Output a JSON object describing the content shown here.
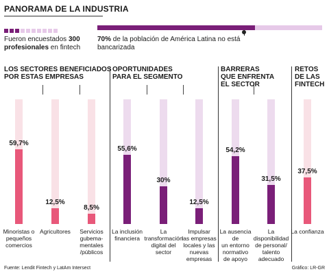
{
  "title": "PANORAMA DE LA INDUSTRIA",
  "colors": {
    "pink": "#e8587a",
    "pink_light": "#f9e1e6",
    "purple": "#7a1f78",
    "purple_light": "#eddbee",
    "purple_mid": "#e6c9e8"
  },
  "survey": {
    "text_before": "Fueron encuestados ",
    "count": "300",
    "bold_after": "profesionales",
    "text_after": " en fintech"
  },
  "latam": {
    "percent": "70%",
    "text": " de la población de América Latina no está bancarizada",
    "value": 70
  },
  "sections": [
    {
      "title_lines": [
        "LOS SECTORES BENEFICIADOS",
        "POR ESTAS EMPRESAS"
      ]
    },
    {
      "title_lines": [
        "OPORTUNIDADES",
        "PARA EL SEGMENTO"
      ]
    },
    {
      "title_lines": [
        "BARRERAS",
        "QUE ENFRENTA",
        "EL SECTOR"
      ]
    },
    {
      "title_lines": [
        "RETOS",
        "DE LAS",
        "FINTECH"
      ]
    }
  ],
  "chart_data": {
    "type": "bar",
    "ylim": [
      0,
      100
    ],
    "categories": [
      {
        "label_lines": [
          "Minoristas o",
          "pequeños",
          "comercios"
        ],
        "value": 59.7,
        "value_label": "59,7%",
        "color": "pink"
      },
      {
        "label_lines": [
          "Agricultores"
        ],
        "value": 12.5,
        "value_label": "12,5%",
        "color": "pink"
      },
      {
        "label_lines": [
          "Servicios",
          "gubema-",
          "mentales",
          "/públicos"
        ],
        "value": 8.5,
        "value_label": "8,5%",
        "color": "pink"
      },
      {
        "label_lines": [
          "La inclusión",
          "financiera"
        ],
        "value": 55.6,
        "value_label": "55,6%",
        "color": "purple"
      },
      {
        "label_lines": [
          "La",
          "transformación",
          "digital del",
          "sector"
        ],
        "value": 30,
        "value_label": "30%",
        "color": "purple"
      },
      {
        "label_lines": [
          "Impulsar",
          "las empresas",
          "locales y las",
          "nuevas",
          "empresas"
        ],
        "value": 12.5,
        "value_label": "12,5%",
        "color": "purple"
      },
      {
        "label_lines": [
          "La ausencia de",
          "un entorno",
          "normativo",
          "de apoyo"
        ],
        "value": 54.2,
        "value_label": "54,2%",
        "color": "purple"
      },
      {
        "label_lines": [
          "La",
          "disponibilidad",
          "de personal/",
          "talento",
          "adecuado"
        ],
        "value": 31.5,
        "value_label": "31,5%",
        "color": "purple"
      },
      {
        "label_lines": [
          "La confianza"
        ],
        "value": 37.5,
        "value_label": "37,5%",
        "color": "pink"
      }
    ]
  },
  "footer": {
    "source": "Fuente: Lendit Fintech y LatAm Intersect",
    "credit": "Gráfico: LR-GR"
  }
}
